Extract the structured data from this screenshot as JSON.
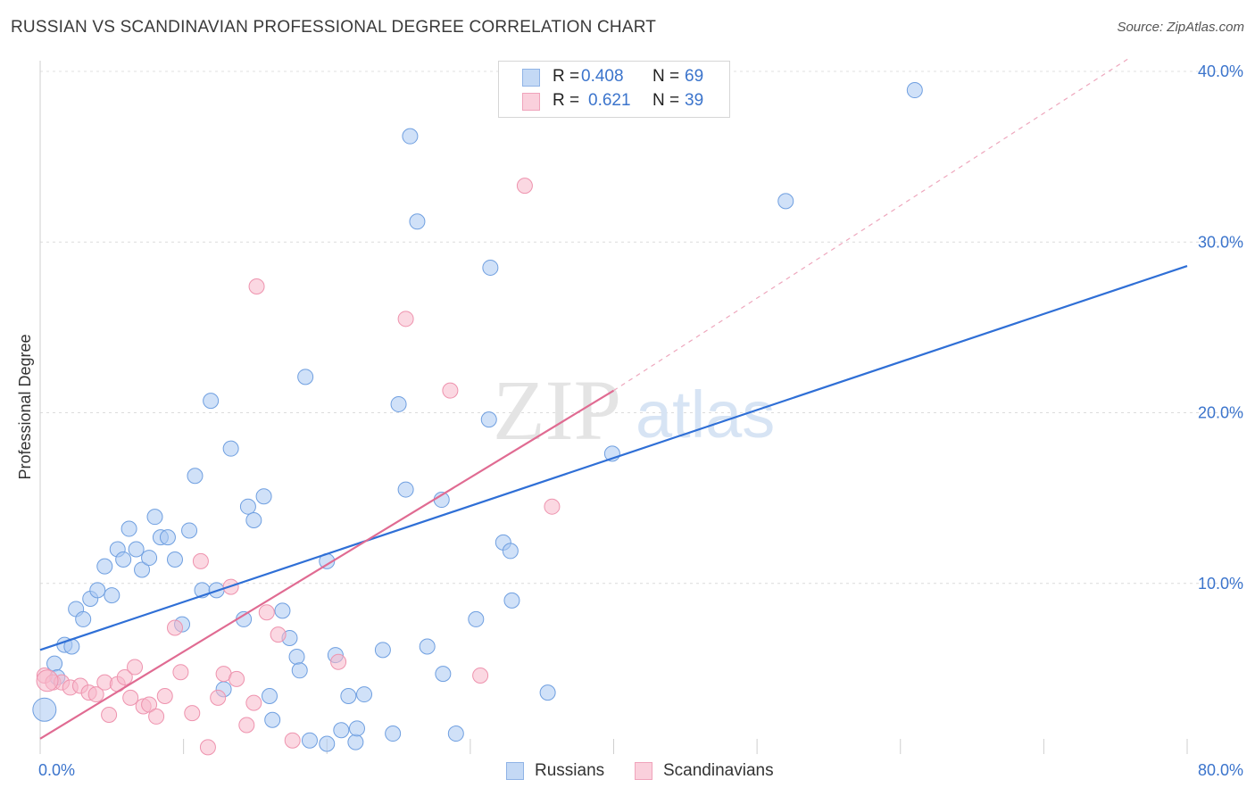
{
  "title": "RUSSIAN VS SCANDINAVIAN PROFESSIONAL DEGREE CORRELATION CHART",
  "source": "Source: ZipAtlas.com",
  "watermark": {
    "zip": "ZIP",
    "atlas": "atlas"
  },
  "legend_top": {
    "rows": [
      {
        "r_label": "R =",
        "r_value": "0.408",
        "n_label": "N =",
        "n_value": "69",
        "color": "#a9c8f2"
      },
      {
        "r_label": "R =",
        "r_value": "0.621",
        "n_label": "N =",
        "n_value": "39",
        "color": "#f7b8cb"
      }
    ]
  },
  "legend_bottom": {
    "items": [
      {
        "label": "Russians",
        "color": "#a9c8f2"
      },
      {
        "label": "Scandinavians",
        "color": "#f7b8cb"
      }
    ]
  },
  "chart_data": {
    "type": "scatter",
    "title": "RUSSIAN VS SCANDINAVIAN PROFESSIONAL DEGREE CORRELATION CHART",
    "xlabel": "",
    "ylabel": "Professional Degree",
    "xlim": [
      0,
      80
    ],
    "ylim": [
      0,
      40
    ],
    "x_tick_labels": [
      "0.0%",
      "80.0%"
    ],
    "y_ticks": [
      10,
      20,
      30,
      40
    ],
    "y_tick_labels": [
      "10.0%",
      "20.0%",
      "30.0%",
      "40.0%"
    ],
    "grid": true,
    "colors": {
      "russians_fill": "#a9c8f2",
      "russians_edge": "#6f9fe0",
      "russians_line": "#2f6fd6",
      "scand_fill": "#f7b8cb",
      "scand_edge": "#ee93ae",
      "scand_line": "#e06b92",
      "axis_label": "#3b74cc"
    },
    "series": [
      {
        "name": "Russians",
        "r": 0.408,
        "n": 69,
        "trend": {
          "x": [
            0,
            80
          ],
          "y": [
            6.1,
            28.6
          ]
        },
        "points": [
          [
            0.3,
            2.6
          ],
          [
            1.0,
            5.3
          ],
          [
            1.2,
            4.5
          ],
          [
            1.7,
            6.4
          ],
          [
            2.2,
            6.3
          ],
          [
            2.5,
            8.5
          ],
          [
            3.0,
            7.9
          ],
          [
            3.5,
            9.1
          ],
          [
            4.0,
            9.6
          ],
          [
            4.5,
            11.0
          ],
          [
            5.0,
            9.3
          ],
          [
            5.4,
            12.0
          ],
          [
            5.8,
            11.4
          ],
          [
            6.2,
            13.2
          ],
          [
            6.7,
            12.0
          ],
          [
            7.1,
            10.8
          ],
          [
            7.6,
            11.5
          ],
          [
            8.0,
            13.9
          ],
          [
            8.4,
            12.7
          ],
          [
            8.9,
            12.7
          ],
          [
            9.4,
            11.4
          ],
          [
            9.9,
            7.6
          ],
          [
            10.4,
            13.1
          ],
          [
            10.8,
            16.3
          ],
          [
            11.3,
            9.6
          ],
          [
            11.9,
            20.7
          ],
          [
            12.3,
            9.6
          ],
          [
            12.8,
            3.8
          ],
          [
            13.3,
            17.9
          ],
          [
            14.2,
            7.9
          ],
          [
            14.5,
            14.5
          ],
          [
            14.9,
            13.7
          ],
          [
            15.6,
            15.1
          ],
          [
            16.0,
            3.4
          ],
          [
            16.2,
            2.0
          ],
          [
            16.9,
            8.4
          ],
          [
            17.4,
            6.8
          ],
          [
            17.9,
            5.7
          ],
          [
            18.1,
            4.9
          ],
          [
            18.5,
            22.1
          ],
          [
            18.8,
            0.8
          ],
          [
            20.0,
            11.3
          ],
          [
            20.6,
            5.8
          ],
          [
            20.0,
            0.6
          ],
          [
            21.0,
            1.4
          ],
          [
            21.5,
            3.4
          ],
          [
            22.6,
            3.5
          ],
          [
            22.0,
            0.7
          ],
          [
            22.1,
            1.5
          ],
          [
            23.9,
            6.1
          ],
          [
            24.6,
            1.2
          ],
          [
            25.0,
            20.5
          ],
          [
            25.5,
            15.5
          ],
          [
            25.8,
            36.2
          ],
          [
            26.3,
            31.2
          ],
          [
            27.0,
            6.3
          ],
          [
            28.0,
            14.9
          ],
          [
            29.0,
            1.2
          ],
          [
            30.4,
            7.9
          ],
          [
            31.3,
            19.6
          ],
          [
            31.4,
            28.5
          ],
          [
            32.3,
            12.4
          ],
          [
            32.8,
            11.9
          ],
          [
            32.9,
            9.0
          ],
          [
            35.4,
            3.6
          ],
          [
            39.9,
            17.6
          ],
          [
            52.0,
            32.4
          ],
          [
            61.0,
            38.9
          ],
          [
            28.1,
            4.7
          ]
        ]
      },
      {
        "name": "Scandinavians",
        "r": 0.621,
        "n": 39,
        "trend": {
          "x": [
            0,
            40
          ],
          "y": [
            0.9,
            21.3
          ]
        },
        "trend_extension": {
          "x": [
            40,
            76
          ],
          "y": [
            21.3,
            40.8
          ]
        },
        "points": [
          [
            0.3,
            4.6
          ],
          [
            0.9,
            4.2
          ],
          [
            1.5,
            4.2
          ],
          [
            2.1,
            3.9
          ],
          [
            2.8,
            4.0
          ],
          [
            3.4,
            3.6
          ],
          [
            3.9,
            3.5
          ],
          [
            4.5,
            4.2
          ],
          [
            4.8,
            2.3
          ],
          [
            5.4,
            4.1
          ],
          [
            5.9,
            4.5
          ],
          [
            6.3,
            3.3
          ],
          [
            6.6,
            5.1
          ],
          [
            7.2,
            2.8
          ],
          [
            7.6,
            2.9
          ],
          [
            8.1,
            2.2
          ],
          [
            8.7,
            3.4
          ],
          [
            9.4,
            7.4
          ],
          [
            9.8,
            4.8
          ],
          [
            10.6,
            2.4
          ],
          [
            11.2,
            11.3
          ],
          [
            11.7,
            0.4
          ],
          [
            12.4,
            3.3
          ],
          [
            12.8,
            4.7
          ],
          [
            13.3,
            9.8
          ],
          [
            13.7,
            4.4
          ],
          [
            14.4,
            1.7
          ],
          [
            14.9,
            3.0
          ],
          [
            15.1,
            27.4
          ],
          [
            15.8,
            8.3
          ],
          [
            16.6,
            7.0
          ],
          [
            17.6,
            0.8
          ],
          [
            20.8,
            5.4
          ],
          [
            25.5,
            25.5
          ],
          [
            28.6,
            21.3
          ],
          [
            30.7,
            4.6
          ],
          [
            33.8,
            33.3
          ],
          [
            35.7,
            14.5
          ],
          [
            0.5,
            4.3
          ]
        ]
      }
    ]
  }
}
